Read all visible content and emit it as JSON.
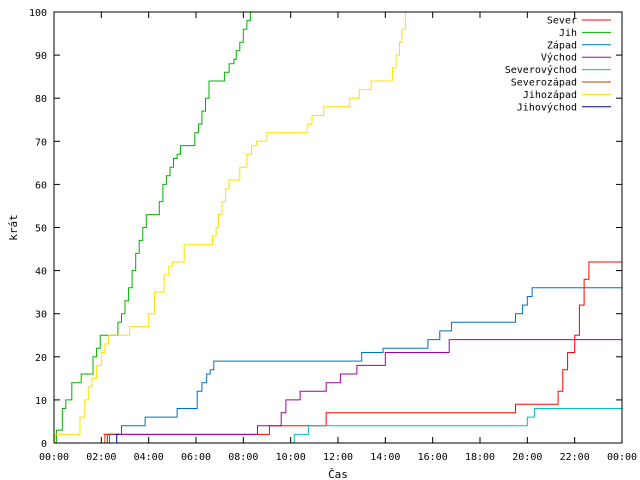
{
  "chart_data": {
    "type": "line",
    "xlabel": "Čas",
    "ylabel": "krát",
    "xlim": [
      0,
      24
    ],
    "ylim": [
      0,
      100
    ],
    "x_ticks": [
      0,
      2,
      4,
      6,
      8,
      10,
      12,
      14,
      16,
      18,
      20,
      22,
      24
    ],
    "x_tick_labels": [
      "00:00",
      "02:00",
      "04:00",
      "06:00",
      "08:00",
      "10:00",
      "12:00",
      "14:00",
      "16:00",
      "18:00",
      "20:00",
      "22:00",
      "00:00"
    ],
    "y_ticks": [
      0,
      10,
      20,
      30,
      40,
      50,
      60,
      70,
      80,
      90,
      100
    ],
    "y_tick_labels": [
      "0",
      "10",
      "20",
      "30",
      "40",
      "50",
      "60",
      "70",
      "80",
      "90",
      "100"
    ],
    "grid": false,
    "legend_position": "top-right",
    "step": true,
    "series": [
      {
        "name": "Sever",
        "color": "#ff0000",
        "points": [
          [
            2.1,
            2
          ],
          [
            2.5,
            2
          ],
          [
            9.0,
            2
          ],
          [
            9.1,
            4
          ],
          [
            11.4,
            4
          ],
          [
            11.5,
            7
          ],
          [
            19.4,
            7
          ],
          [
            19.5,
            9
          ],
          [
            21.1,
            9
          ],
          [
            21.3,
            12
          ],
          [
            21.5,
            17
          ],
          [
            21.7,
            21
          ],
          [
            22.0,
            25
          ],
          [
            22.2,
            32
          ],
          [
            22.4,
            38
          ],
          [
            22.6,
            42
          ],
          [
            24.0,
            42
          ]
        ]
      },
      {
        "name": "Jih",
        "color": "#00b000",
        "points": [
          [
            0,
            0
          ],
          [
            0.1,
            3
          ],
          [
            0.35,
            8
          ],
          [
            0.5,
            10
          ],
          [
            0.75,
            14
          ],
          [
            1.1,
            14
          ],
          [
            1.15,
            16
          ],
          [
            1.5,
            16
          ],
          [
            1.65,
            20
          ],
          [
            1.8,
            22
          ],
          [
            1.95,
            25
          ],
          [
            2.5,
            25
          ],
          [
            2.7,
            28
          ],
          [
            2.85,
            30
          ],
          [
            3.0,
            33
          ],
          [
            3.15,
            36
          ],
          [
            3.3,
            40
          ],
          [
            3.45,
            44
          ],
          [
            3.6,
            47
          ],
          [
            3.75,
            50
          ],
          [
            3.9,
            53
          ],
          [
            4.3,
            53
          ],
          [
            4.45,
            56
          ],
          [
            4.6,
            60
          ],
          [
            4.75,
            62
          ],
          [
            4.9,
            64
          ],
          [
            5.05,
            66
          ],
          [
            5.2,
            67
          ],
          [
            5.35,
            69
          ],
          [
            5.85,
            69
          ],
          [
            5.95,
            72
          ],
          [
            6.1,
            74
          ],
          [
            6.25,
            77
          ],
          [
            6.4,
            80
          ],
          [
            6.55,
            84
          ],
          [
            7.1,
            84
          ],
          [
            7.2,
            86
          ],
          [
            7.4,
            88
          ],
          [
            7.6,
            89
          ],
          [
            7.7,
            91
          ],
          [
            7.85,
            93
          ],
          [
            8.0,
            96
          ],
          [
            8.15,
            98
          ],
          [
            8.3,
            100
          ]
        ]
      },
      {
        "name": "Západ",
        "color": "#0070c0",
        "points": [
          [
            2.3,
            0
          ],
          [
            2.35,
            2
          ],
          [
            2.8,
            2
          ],
          [
            2.85,
            4
          ],
          [
            3.8,
            4
          ],
          [
            3.85,
            6
          ],
          [
            5.1,
            6
          ],
          [
            5.2,
            8
          ],
          [
            5.95,
            8
          ],
          [
            6.05,
            12
          ],
          [
            6.25,
            14
          ],
          [
            6.45,
            16
          ],
          [
            6.6,
            17
          ],
          [
            6.75,
            19
          ],
          [
            12.9,
            19
          ],
          [
            13.0,
            21
          ],
          [
            13.8,
            21
          ],
          [
            13.9,
            22
          ],
          [
            15.7,
            22
          ],
          [
            15.8,
            24
          ],
          [
            16.2,
            24
          ],
          [
            16.3,
            26
          ],
          [
            16.7,
            26
          ],
          [
            16.8,
            28
          ],
          [
            19.4,
            28
          ],
          [
            19.5,
            30
          ],
          [
            19.75,
            30
          ],
          [
            19.8,
            32
          ],
          [
            20.0,
            34
          ],
          [
            20.2,
            36
          ],
          [
            24.0,
            36
          ]
        ]
      },
      {
        "name": "Východ",
        "color": "#a000a0",
        "points": [
          [
            2.2,
            0
          ],
          [
            2.25,
            2
          ],
          [
            8.5,
            2
          ],
          [
            8.6,
            4
          ],
          [
            9.5,
            4
          ],
          [
            9.6,
            7
          ],
          [
            9.8,
            10
          ],
          [
            10.3,
            10
          ],
          [
            10.4,
            12
          ],
          [
            11.4,
            12
          ],
          [
            11.5,
            14
          ],
          [
            12.0,
            14
          ],
          [
            12.1,
            16
          ],
          [
            12.7,
            16
          ],
          [
            12.8,
            18
          ],
          [
            13.9,
            18
          ],
          [
            14.0,
            21
          ],
          [
            16.6,
            21
          ],
          [
            16.7,
            24
          ],
          [
            24.0,
            24
          ]
        ]
      },
      {
        "name": "Severovýchod",
        "color": "#00c0c0",
        "points": [
          [
            10.1,
            0
          ],
          [
            10.15,
            2
          ],
          [
            10.7,
            2
          ],
          [
            10.75,
            4
          ],
          [
            19.9,
            4
          ],
          [
            20.0,
            6
          ],
          [
            20.2,
            6
          ],
          [
            20.3,
            8
          ],
          [
            24.0,
            8
          ]
        ]
      },
      {
        "name": "Severozápad",
        "color": "#c04000",
        "points": [
          [
            2.1,
            0
          ],
          [
            2.15,
            2
          ],
          [
            2.5,
            2
          ]
        ]
      },
      {
        "name": "Jihozápad",
        "color": "#ffe000",
        "points": [
          [
            0,
            0
          ],
          [
            0.05,
            2
          ],
          [
            1.0,
            2
          ],
          [
            1.1,
            6
          ],
          [
            1.3,
            10
          ],
          [
            1.45,
            13
          ],
          [
            1.6,
            15
          ],
          [
            1.8,
            18
          ],
          [
            2.0,
            21
          ],
          [
            2.15,
            23
          ],
          [
            2.3,
            25
          ],
          [
            3.1,
            25
          ],
          [
            3.2,
            27
          ],
          [
            3.9,
            27
          ],
          [
            4.0,
            30
          ],
          [
            4.25,
            35
          ],
          [
            4.55,
            35
          ],
          [
            4.65,
            39
          ],
          [
            4.85,
            41
          ],
          [
            5.0,
            42
          ],
          [
            5.4,
            42
          ],
          [
            5.5,
            46
          ],
          [
            6.6,
            46
          ],
          [
            6.7,
            48
          ],
          [
            6.85,
            50
          ],
          [
            6.95,
            53
          ],
          [
            7.1,
            56
          ],
          [
            7.25,
            59
          ],
          [
            7.4,
            61
          ],
          [
            7.75,
            61
          ],
          [
            7.85,
            64
          ],
          [
            8.05,
            64
          ],
          [
            8.15,
            67
          ],
          [
            8.35,
            69
          ],
          [
            8.55,
            70
          ],
          [
            8.9,
            70
          ],
          [
            9.0,
            72
          ],
          [
            10.6,
            72
          ],
          [
            10.7,
            74
          ],
          [
            10.9,
            76
          ],
          [
            11.3,
            76
          ],
          [
            11.4,
            78
          ],
          [
            12.4,
            78
          ],
          [
            12.5,
            80
          ],
          [
            12.8,
            80
          ],
          [
            12.9,
            82
          ],
          [
            13.3,
            82
          ],
          [
            13.4,
            84
          ],
          [
            14.2,
            84
          ],
          [
            14.3,
            87
          ],
          [
            14.45,
            90
          ],
          [
            14.6,
            93
          ],
          [
            14.7,
            96
          ],
          [
            14.85,
            100
          ]
        ]
      },
      {
        "name": "Jihovýchod",
        "color": "#000080",
        "points": [
          [
            2.6,
            0
          ],
          [
            2.65,
            2
          ],
          [
            2.75,
            2
          ]
        ]
      }
    ]
  }
}
